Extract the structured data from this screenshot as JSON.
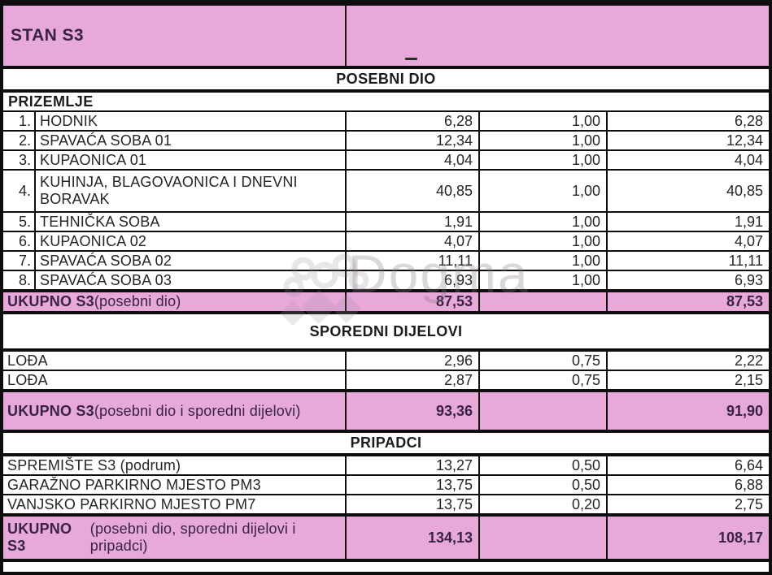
{
  "header": {
    "title": "STAN S3"
  },
  "watermark": {
    "brand": "Dogma"
  },
  "colors": {
    "pink": "#e7a8da",
    "purple": "#3a2342",
    "border": "#0e0e0e"
  },
  "rows": [
    {
      "kind": "section",
      "label": "POSEBNI DIO"
    },
    {
      "kind": "subheader",
      "label": "PRIZEMLJE"
    },
    {
      "kind": "item",
      "num": "1.",
      "desc": "HODNIK",
      "area": "6,28",
      "coef": "1,00",
      "val": "6,28"
    },
    {
      "kind": "item",
      "num": "2.",
      "desc": "SPAVAĆA SOBA 01",
      "area": "12,34",
      "coef": "1,00",
      "val": "12,34"
    },
    {
      "kind": "item",
      "num": "3.",
      "desc": "KUPAONICA 01",
      "area": "4,04",
      "coef": "1,00",
      "val": "4,04"
    },
    {
      "kind": "item",
      "num": "4.",
      "desc": "KUHINJA, BLAGOVAONICA I DNEVNI BORAVAK",
      "area": "40,85",
      "coef": "1,00",
      "val": "40,85",
      "tall": true
    },
    {
      "kind": "item",
      "num": "5.",
      "desc": "TEHNIČKA SOBA",
      "area": "1,91",
      "coef": "1,00",
      "val": "1,91"
    },
    {
      "kind": "item",
      "num": "6.",
      "desc": "KUPAONICA 02",
      "area": "4,07",
      "coef": "1,00",
      "val": "4,07"
    },
    {
      "kind": "item",
      "num": "7.",
      "desc": "SPAVAĆA SOBA 02",
      "area": "11,11",
      "coef": "1,00",
      "val": "11,11"
    },
    {
      "kind": "item",
      "num": "8.",
      "desc": "SPAVAĆA SOBA 03",
      "area": "6,93",
      "coef": "1,00",
      "val": "6,93"
    },
    {
      "kind": "total",
      "bold": "UKUPNO S3",
      "note": " (posebni dio)",
      "area": "87,53",
      "coef": "",
      "val": "87,53"
    },
    {
      "kind": "section",
      "label": "SPOREDNI DIJELOVI",
      "lg": true
    },
    {
      "kind": "plain",
      "desc": "LOĐA",
      "area": "2,96",
      "coef": "0,75",
      "val": "2,22"
    },
    {
      "kind": "plain",
      "desc": "LOĐA",
      "area": "2,87",
      "coef": "0,75",
      "val": "2,15"
    },
    {
      "kind": "total",
      "bold": "UKUPNO S3",
      "note": " (posebni dio i sporedni dijelovi)",
      "area": "93,36",
      "coef": "",
      "val": "91,90",
      "tall": true
    },
    {
      "kind": "section",
      "label": "PRIPADCI"
    },
    {
      "kind": "plain",
      "desc": "SPREMIŠTE S3 (podrum)",
      "area": "13,27",
      "coef": "0,50",
      "val": "6,64"
    },
    {
      "kind": "plain",
      "desc": "GARAŽNO PARKIRNO MJESTO PM3",
      "area": "13,75",
      "coef": "0,50",
      "val": "6,88"
    },
    {
      "kind": "plain",
      "desc": "VANJSKO PARKIRNO MJESTO PM7",
      "area": "13,75",
      "coef": "0,20",
      "val": "2,75"
    },
    {
      "kind": "total",
      "bold": "UKUPNO S3",
      "note": " (posebni dio, sporedni dijelovi i pripadci)",
      "area": "134,13",
      "coef": "",
      "val": "108,17",
      "tall2": true
    }
  ]
}
